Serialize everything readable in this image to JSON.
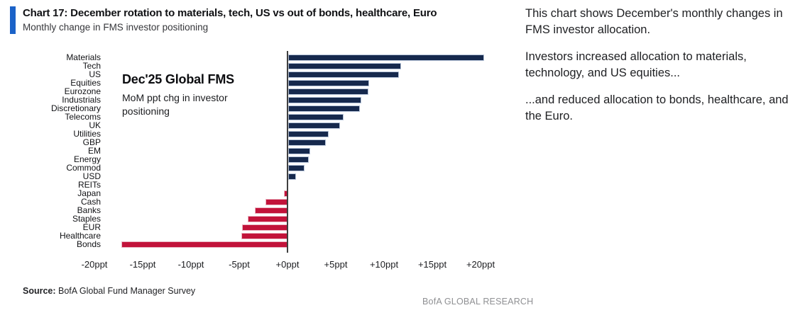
{
  "header": {
    "title": "Chart 17: December rotation to materials, tech, US vs out of bonds, healthcare, Euro",
    "subtitle": "Monthly change in FMS investor positioning"
  },
  "annotation": {
    "title": "Dec'25 Global FMS",
    "subtitle": "MoM ppt chg in investor positioning"
  },
  "chart_data": {
    "type": "bar",
    "orientation": "horizontal",
    "title": "Dec'25 Global FMS",
    "subtitle": "MoM ppt chg in investor positioning",
    "xlabel": "MoM ppt change",
    "ylabel": "",
    "xlim": [
      -22,
      22
    ],
    "grid": false,
    "categories": [
      "Materials",
      "Tech",
      "US",
      "Equities",
      "Eurozone",
      "Industrials",
      "Discretionary",
      "Telecoms",
      "UK",
      "Utilities",
      "GBP",
      "EM",
      "Energy",
      "Commod",
      "USD",
      "REITs",
      "Japan",
      "Cash",
      "Banks",
      "Staples",
      "EUR",
      "Healthcare",
      "Bonds"
    ],
    "values": [
      20.3,
      11.7,
      11.5,
      8.4,
      8.3,
      7.6,
      7.4,
      5.7,
      5.4,
      4.2,
      3.9,
      2.3,
      2.1,
      1.7,
      0.8,
      0.0,
      -0.4,
      -2.3,
      -3.4,
      -4.1,
      -4.7,
      -4.8,
      -17.2
    ],
    "tick_values": [
      -20,
      -15,
      -10,
      -5,
      0,
      5,
      10,
      15,
      20
    ],
    "tick_labels": [
      "-20ppt",
      "-15ppt",
      "-10ppt",
      "-5ppt",
      "+0ppt",
      "+5ppt",
      "+10ppt",
      "+15ppt",
      "+20ppt"
    ],
    "colors": {
      "positive_fill": "#16294d",
      "positive_border": "#b5c3d8",
      "negative_fill": "#c2133a",
      "negative_border": "#eab6c3",
      "axis": "#3f3f3f"
    }
  },
  "commentary": {
    "para1": "This chart shows December's monthly changes in FMS investor allocation.",
    "para2": "Investors increased allocation to materials, technology, and US equities...",
    "para3": "...and reduced allocation to bonds, healthcare, and the Euro."
  },
  "source": {
    "label": "Source:",
    "text": " BofA Global Fund Manager Survey"
  },
  "footer": {
    "brand": "BofA GLOBAL RESEARCH"
  }
}
